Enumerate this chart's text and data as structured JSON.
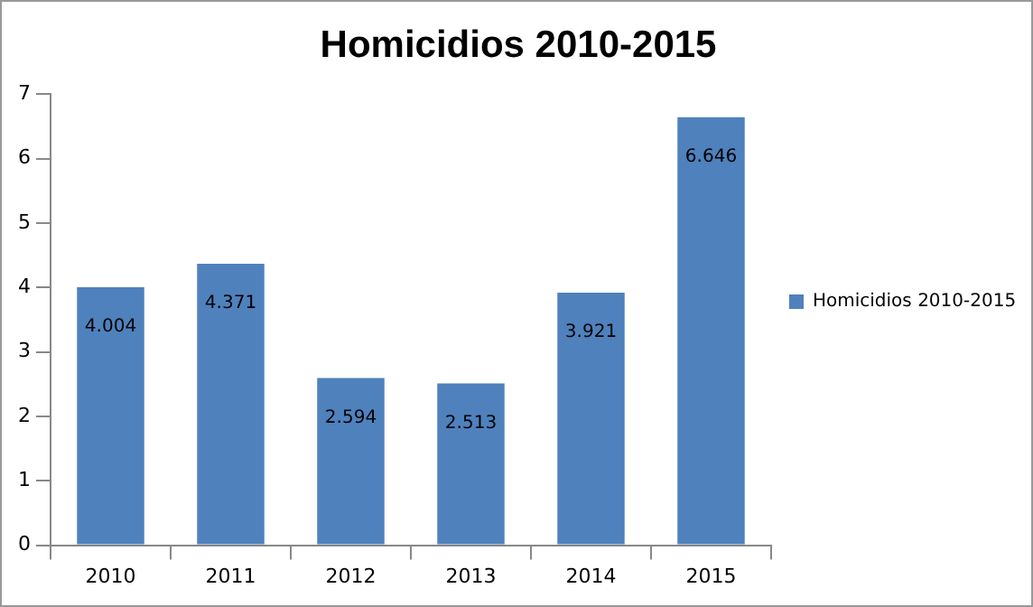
{
  "chart_data": {
    "type": "bar",
    "title": "Homicidios 2010-2015",
    "categories": [
      "2010",
      "2011",
      "2012",
      "2013",
      "2014",
      "2015"
    ],
    "series": [
      {
        "name": "Homicidios 2010-2015",
        "color": "#4f81bd",
        "values": [
          4.004,
          4.371,
          2.594,
          2.513,
          3.921,
          6.646
        ]
      }
    ],
    "ylim": [
      0,
      7
    ],
    "yticks": [
      0,
      1,
      2,
      3,
      4,
      5,
      6,
      7
    ],
    "grid": false,
    "legend": "right",
    "data_labels": true
  }
}
